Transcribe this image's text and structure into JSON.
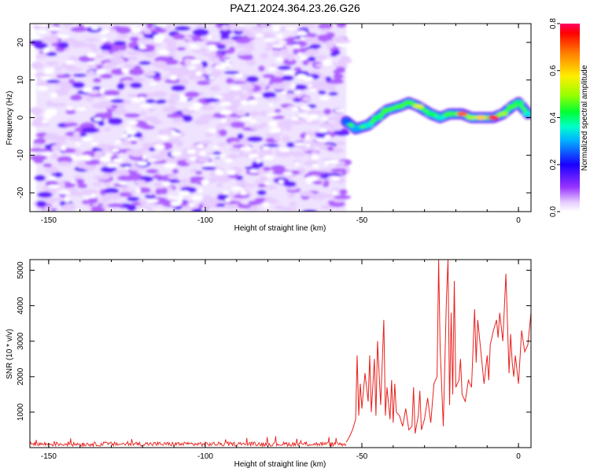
{
  "title": "PAZ1.2024.364.23.26.G26",
  "chart_data": [
    {
      "type": "heatmap",
      "xlabel": "Height of straight line (km)",
      "ylabel": "Frequency (Hz)",
      "xlim": [
        -156,
        4
      ],
      "ylim": [
        -25,
        25
      ],
      "xticks": [
        -150,
        -100,
        -50,
        0
      ],
      "yticks": [
        -20,
        -10,
        0,
        10,
        20
      ],
      "colorbar": {
        "label": "Normalized spectral amplitude",
        "range": [
          0,
          0.8
        ],
        "ticks": [
          "0.0",
          "0.2",
          "0.4",
          "0.6",
          "0.8"
        ]
      },
      "noise_region": {
        "x_range": [
          -154,
          -55
        ],
        "y_range": [
          -25,
          25
        ],
        "typical_amplitude": 0.05
      },
      "signal_ridge": {
        "x": [
          -55,
          -52,
          -48,
          -45,
          -42,
          -38,
          -35,
          -32,
          -28,
          -25,
          -22,
          -18,
          -15,
          -12,
          -8,
          -5,
          -2,
          0,
          3
        ],
        "frequency": [
          -1,
          -3,
          -2,
          0,
          2,
          3,
          4,
          3,
          1,
          0,
          1,
          1,
          0,
          0,
          0,
          1,
          3,
          4,
          1
        ],
        "amplitude": [
          0.25,
          0.3,
          0.35,
          0.4,
          0.45,
          0.45,
          0.45,
          0.55,
          0.4,
          0.35,
          0.45,
          0.7,
          0.5,
          0.6,
          0.75,
          0.5,
          0.45,
          0.4,
          0.35
        ]
      },
      "grid": false,
      "colorbar_position": "right"
    },
    {
      "type": "line",
      "xlabel": "Height of straight line (km)",
      "ylabel": "SNR (10 * v/v)",
      "xlim": [
        -156,
        4
      ],
      "ylim": [
        0,
        5300
      ],
      "xticks": [
        -150,
        -100,
        -50,
        0
      ],
      "yticks": [
        1000,
        2000,
        3000,
        4000,
        5000
      ],
      "color": "#e8201c",
      "baseline": {
        "x_range": [
          -156,
          -55
        ],
        "level": 100
      },
      "series": [
        {
          "x": [
            -55,
            -54,
            -53,
            -52,
            -51.5,
            -51,
            -50.5,
            -50,
            -49,
            -48,
            -47.5,
            -47,
            -46,
            -45.5,
            -45,
            -44,
            -43,
            -42.5,
            -42,
            -41,
            -40.5,
            -40,
            -39.5,
            -39,
            -38,
            -37,
            -36,
            -35,
            -34,
            -33.5,
            -33,
            -32,
            -31.5,
            -31,
            -30,
            -29,
            -28,
            -27,
            -26,
            -25.5,
            -25,
            -24,
            -23,
            -22.5,
            -22,
            -21.5,
            -21,
            -20.5,
            -20,
            -19,
            -18.5,
            -18,
            -17,
            -16,
            -15,
            -14,
            -13.5,
            -13,
            -12,
            -11,
            -10.5,
            -10,
            -9.5,
            -9,
            -8,
            -7,
            -6.5,
            -6,
            -5,
            -4,
            -3,
            -2.5,
            -2,
            -1.5,
            -1,
            0,
            1,
            2,
            3,
            4
          ],
          "y": [
            150,
            300,
            500,
            800,
            2600,
            900,
            1800,
            1100,
            2100,
            1300,
            2600,
            1000,
            2500,
            900,
            3000,
            1200,
            3600,
            900,
            1700,
            800,
            1900,
            700,
            1800,
            1000,
            900,
            600,
            1100,
            500,
            600,
            1700,
            400,
            900,
            1600,
            500,
            800,
            1400,
            700,
            1800,
            2000,
            5300,
            2800,
            600,
            4200,
            5300,
            1200,
            3800,
            1500,
            4700,
            1700,
            1900,
            2500,
            1500,
            1300,
            1900,
            1700,
            3900,
            2400,
            3600,
            2700,
            1800,
            2200,
            2600,
            1900,
            2900,
            3300,
            3600,
            3100,
            3800,
            3000,
            4900,
            2100,
            3200,
            2400,
            2000,
            2600,
            1800,
            3300,
            2700,
            2900,
            3800
          ]
        }
      ],
      "grid": false
    }
  ]
}
